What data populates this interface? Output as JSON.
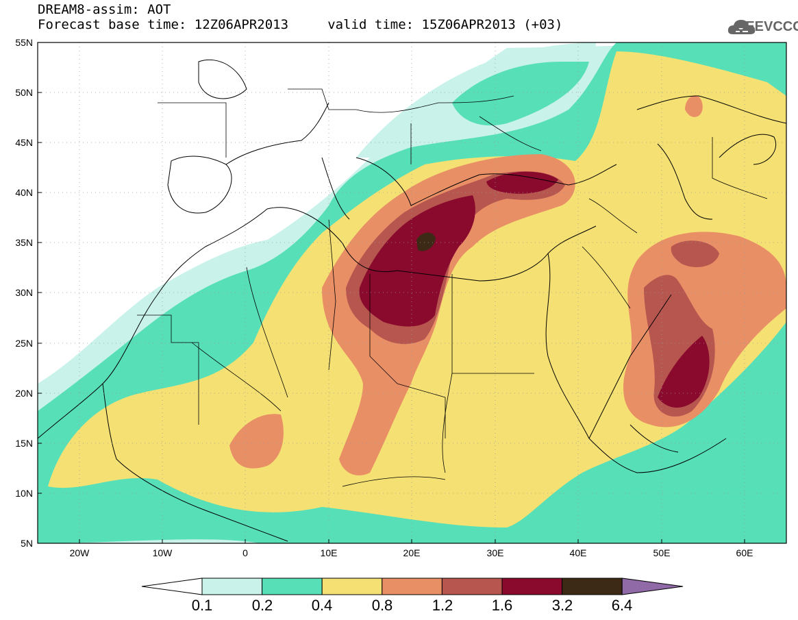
{
  "title": {
    "line1": "DREAM8-assim: AOT",
    "line2": "Forecast base time: 12Z06APR2013     valid time: 15Z06APR2013 (+03)"
  },
  "logo": {
    "text": "SEEVCCC",
    "icon": "cloud-icon"
  },
  "map": {
    "lon_range": [
      -25,
      65
    ],
    "lat_range": [
      5,
      55
    ],
    "grid": "dotted",
    "lat_labels": [
      "55N",
      "50N",
      "45N",
      "40N",
      "35N",
      "30N",
      "25N",
      "20N",
      "15N",
      "10N",
      "5N"
    ],
    "lon_labels": [
      "20W",
      "10W",
      "0",
      "10E",
      "20E",
      "30E",
      "40E",
      "50E",
      "60E"
    ],
    "variable": "AOT"
  },
  "colorbar": {
    "levels": [
      "0.1",
      "0.2",
      "0.4",
      "0.8",
      "1.2",
      "1.6",
      "3.2",
      "6.4"
    ],
    "colors": [
      "#ffffff",
      "#c9f3ea",
      "#57dfb8",
      "#f5e173",
      "#e98f66",
      "#b7564f",
      "#8a0a2e",
      "#3c2a17",
      "#8f6aa7"
    ]
  }
}
